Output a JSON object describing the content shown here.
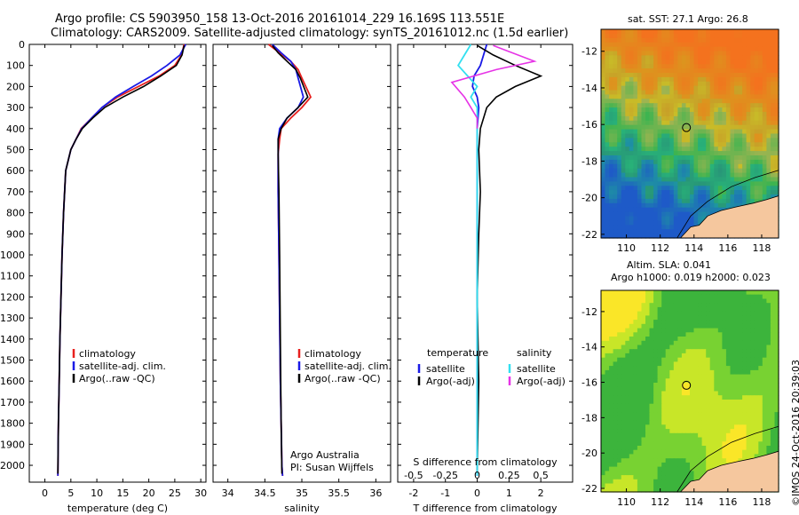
{
  "header": {
    "line1": "Argo profile: CS 5903950_158 13-Oct-2016 20161014_229 16.169S 113.551E",
    "line2": "Climatology: CARS2009. Satellite-adjusted climatology: synTS_20161012.nc (1.5d earlier)"
  },
  "map_top": {
    "title": "sat. SST: 27.1  Argo: 26.8"
  },
  "map_bottom": {
    "title1": "Altim. SLA: 0.041",
    "title2": "Argo h1000: 0.019 h2000: 0.023"
  },
  "credit": "©IMOS 24-Oct-2016 20:39:03",
  "colors": {
    "climatology": "#e8201e",
    "satellite": "#1a1ae6",
    "argo": "#000000",
    "sat_salinity": "#33e0f0",
    "argo_salinity": "#e633e6"
  },
  "chart_data": [
    {
      "type": "line",
      "xlabel": "temperature (deg C)",
      "ylabel": "",
      "xlim": [
        -3,
        31
      ],
      "ylim": [
        2080,
        0
      ],
      "xticks": [
        "0",
        "5",
        "10",
        "15",
        "20",
        "25",
        "30"
      ],
      "yticks": [
        "0",
        "100",
        "200",
        "300",
        "400",
        "500",
        "600",
        "700",
        "800",
        "900",
        "1000",
        "1100",
        "1200",
        "1300",
        "1400",
        "1500",
        "1600",
        "1700",
        "1800",
        "1900",
        "2000"
      ],
      "legend": [
        "climatology",
        "satellite-adj. clim.",
        "Argo(..raw -QC)"
      ],
      "series": [
        {
          "name": "climatology",
          "x": [
            26.8,
            26.3,
            25,
            22,
            18,
            14,
            11,
            9,
            7,
            6,
            5,
            4,
            3.6,
            3.3,
            3.1,
            2.9,
            2.75,
            2.6,
            2.55,
            2.5
          ],
          "y": [
            0,
            50,
            100,
            150,
            200,
            250,
            300,
            350,
            400,
            450,
            500,
            600,
            800,
            1000,
            1200,
            1400,
            1600,
            1800,
            1900,
            2050
          ]
        },
        {
          "name": "satellite-adj. clim.",
          "x": [
            27.1,
            26,
            23.5,
            20.5,
            17,
            13.6,
            11,
            9,
            7.1,
            6,
            5,
            4,
            3.6,
            3.3,
            3.1,
            2.9,
            2.75,
            2.6,
            2.55,
            2.5
          ],
          "y": [
            0,
            50,
            100,
            150,
            200,
            250,
            300,
            350,
            400,
            450,
            500,
            600,
            800,
            1000,
            1200,
            1400,
            1600,
            1800,
            1900,
            2050
          ]
        },
        {
          "name": "Argo(..raw -QC)",
          "x": [
            26.8,
            26.4,
            25.3,
            22.3,
            19,
            15,
            11.5,
            9.2,
            7.2,
            6,
            5,
            4,
            3.6,
            3.3,
            3.1,
            2.9,
            2.75,
            2.6,
            2.55,
            2.5
          ],
          "y": [
            5,
            50,
            100,
            150,
            200,
            250,
            300,
            350,
            400,
            450,
            500,
            600,
            800,
            1000,
            1200,
            1400,
            1600,
            1800,
            1900,
            2040
          ]
        }
      ]
    },
    {
      "type": "line",
      "xlabel": "salinity",
      "ylabel": "",
      "xlim": [
        33.8,
        36.2
      ],
      "ylim": [
        2080,
        0
      ],
      "xticks": [
        "34",
        "34.5",
        "35",
        "35.5",
        "36"
      ],
      "legend": [
        "climatology",
        "satellite-adj. clim.",
        "Argo(..raw -QC)"
      ],
      "annotation1": "Argo Australia",
      "annotation2": "PI: Susan Wijffels",
      "series": [
        {
          "name": "climatology",
          "x": [
            34.55,
            34.7,
            34.85,
            34.95,
            35.0,
            35.12,
            35.0,
            34.85,
            34.72,
            34.7,
            34.68,
            34.68,
            34.69,
            34.7,
            34.71,
            34.72,
            34.73,
            34.74
          ],
          "y": [
            0,
            40,
            80,
            120,
            160,
            250,
            300,
            350,
            400,
            450,
            520,
            700,
            1000,
            1300,
            1600,
            1800,
            2000,
            2050
          ]
        },
        {
          "name": "satellite-adj. clim.",
          "x": [
            34.6,
            34.72,
            34.85,
            34.92,
            34.95,
            35.02,
            34.95,
            34.8,
            34.7,
            34.68,
            34.68,
            34.68,
            34.69,
            34.7,
            34.71,
            34.72,
            34.73,
            34.74
          ],
          "y": [
            0,
            40,
            80,
            120,
            160,
            250,
            300,
            350,
            400,
            450,
            520,
            700,
            1000,
            1300,
            1600,
            1800,
            2000,
            2050
          ]
        },
        {
          "name": "Argo(..raw -QC)",
          "x": [
            34.6,
            34.68,
            34.8,
            34.92,
            34.98,
            35.08,
            34.95,
            34.8,
            34.72,
            34.68,
            34.68,
            34.69,
            34.7,
            34.71,
            34.72,
            34.73
          ],
          "y": [
            5,
            40,
            80,
            120,
            160,
            250,
            300,
            350,
            400,
            450,
            520,
            700,
            1000,
            1400,
            1800,
            2040
          ]
        }
      ]
    },
    {
      "type": "line",
      "xlabel": "T difference from climatology",
      "title": "S difference from climatology",
      "xlim": [
        -2.5,
        3
      ],
      "ylim": [
        2080,
        0
      ],
      "xticks": [
        "-2",
        "-1",
        "0",
        "1",
        "2"
      ],
      "xticks_top": [
        "-0.5",
        "-0.25",
        "0",
        "0.25",
        "0.5"
      ],
      "legend_t_title": "temperature",
      "legend_s_title": "salinity",
      "legend_t": [
        "satellite",
        "Argo(-adj)"
      ],
      "legend_s": [
        "satellite",
        "Argo(-adj)"
      ],
      "series": [
        {
          "name": "T satellite",
          "x": [
            0.3,
            0.2,
            0.1,
            -0.1,
            -0.15,
            0,
            0.05,
            0,
            0,
            0,
            0,
            0,
            0
          ],
          "y": [
            0,
            50,
            100,
            150,
            200,
            250,
            300,
            400,
            500,
            800,
            1200,
            1600,
            2050
          ]
        },
        {
          "name": "T Argo(-adj)",
          "x": [
            0,
            0.5,
            1.2,
            2.0,
            1.2,
            0.6,
            0.3,
            0.1,
            0.05,
            0.1,
            0.05,
            0,
            0.05,
            0
          ],
          "y": [
            5,
            50,
            100,
            150,
            200,
            250,
            300,
            400,
            500,
            700,
            900,
            1200,
            1600,
            2040
          ]
        },
        {
          "name": "S satellite",
          "x": [
            -0.2,
            -0.4,
            -0.6,
            -0.3,
            0,
            -0.2,
            0,
            0,
            0,
            0,
            0,
            0
          ],
          "y": [
            0,
            50,
            100,
            150,
            200,
            250,
            300,
            400,
            600,
            1000,
            1500,
            2050
          ]
        },
        {
          "name": "S Argo(-adj)",
          "x": [
            0.5,
            1.8,
            0.6,
            -0.8,
            -0.4,
            -0.2,
            0,
            0
          ],
          "y": [
            5,
            80,
            120,
            180,
            250,
            300,
            350,
            400
          ]
        }
      ]
    },
    {
      "type": "heatmap",
      "title": "sat. SST: 27.1  Argo: 26.8",
      "xlim": [
        108.5,
        119
      ],
      "ylim": [
        -22.2,
        -10.8
      ],
      "xticks": [
        "110",
        "112",
        "114",
        "116",
        "118"
      ],
      "yticks": [
        "-12",
        "-14",
        "-16",
        "-18",
        "-20",
        "-22"
      ],
      "marker": {
        "x": 113.551,
        "y": -16.169
      }
    },
    {
      "type": "heatmap",
      "title": "Altim. SLA: 0.041",
      "subtitle": "Argo h1000: 0.019 h2000: 0.023",
      "xlim": [
        108.5,
        119
      ],
      "ylim": [
        -22.2,
        -10.8
      ],
      "xticks": [
        "110",
        "112",
        "114",
        "116",
        "118"
      ],
      "yticks": [
        "-12",
        "-14",
        "-16",
        "-18",
        "-20",
        "-22"
      ],
      "marker": {
        "x": 113.551,
        "y": -16.169
      }
    }
  ]
}
